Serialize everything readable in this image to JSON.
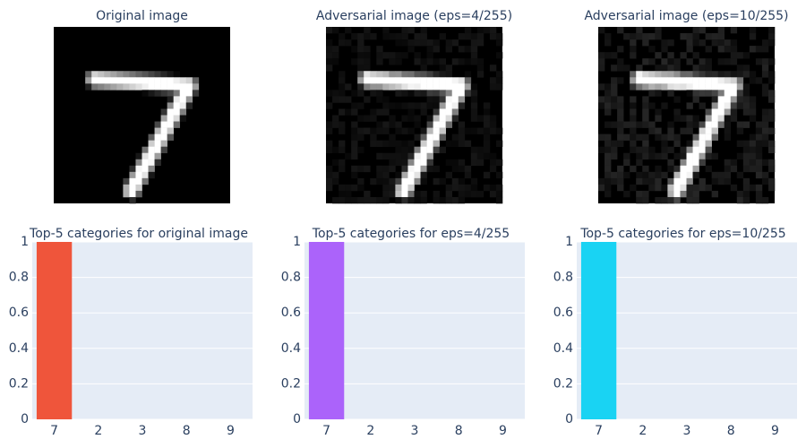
{
  "chart_data": [
    {
      "type": "image",
      "title": "Original image"
    },
    {
      "type": "image",
      "title": "Adversarial image (eps=4/255)"
    },
    {
      "type": "image",
      "title": "Adversarial image (eps=10/255)"
    },
    {
      "type": "bar",
      "title": "Top-5 categories for original image",
      "categories": [
        "7",
        "2",
        "3",
        "8",
        "9"
      ],
      "values": [
        1,
        0,
        0,
        0,
        0
      ],
      "color": "#EF553B",
      "ylim": [
        0,
        1
      ],
      "yticks": [
        0,
        0.2,
        0.4,
        0.6,
        0.8,
        1
      ],
      "grid": true
    },
    {
      "type": "bar",
      "title": "Top-5 categories for eps=4/255",
      "categories": [
        "7",
        "2",
        "3",
        "8",
        "9"
      ],
      "values": [
        1,
        0,
        0,
        0,
        0
      ],
      "color": "#AB63FA",
      "ylim": [
        0,
        1
      ],
      "yticks": [
        0,
        0.2,
        0.4,
        0.6,
        0.8,
        1
      ],
      "grid": true
    },
    {
      "type": "bar",
      "title": "Top-5 categories for eps=10/255",
      "categories": [
        "7",
        "2",
        "3",
        "8",
        "9"
      ],
      "values": [
        1,
        0,
        0,
        0,
        0
      ],
      "color": "#19D3F3",
      "ylim": [
        0,
        1
      ],
      "yticks": [
        0,
        0.2,
        0.4,
        0.6,
        0.8,
        1
      ],
      "grid": true
    }
  ]
}
